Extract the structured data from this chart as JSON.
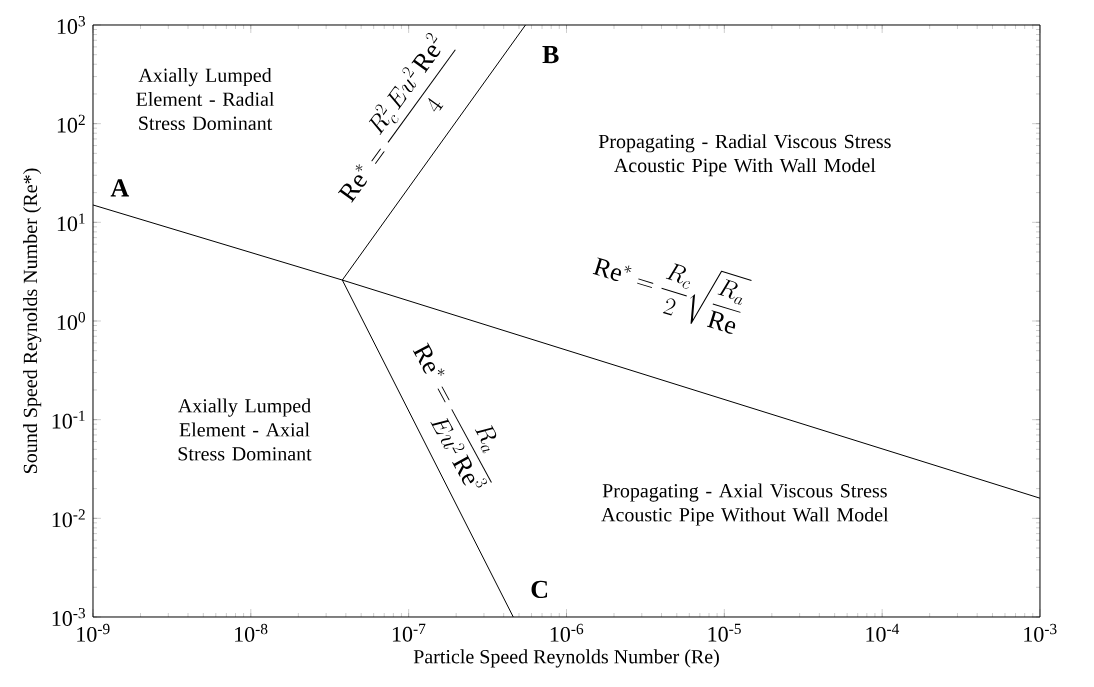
{
  "chart_data": {
    "type": "line",
    "xlabel": "Particle Speed Reynolds Number (Re)",
    "ylabel": "Sound Speed Reynolds Number (Re*)",
    "log": "xy",
    "grid": false,
    "marker": "none",
    "line_style": "solid",
    "xlim": [
      1e-09,
      0.001
    ],
    "ylim": [
      0.001,
      1000.0
    ],
    "xticks": [
      {
        "value": 1e-09,
        "label": "10$^{-9}$"
      },
      {
        "value": 1e-08,
        "label": "10$^{-8}$"
      },
      {
        "value": 1e-07,
        "label": "10$^{-7}$"
      },
      {
        "value": 1e-06,
        "label": "10$^{-6}$"
      },
      {
        "value": 1e-05,
        "label": "10$^{-5}$"
      },
      {
        "value": 0.0001,
        "label": "10$^{-4}$"
      },
      {
        "value": 0.001,
        "label": "10$^{-3}$"
      }
    ],
    "yticks": [
      {
        "value": 0.001,
        "label": "10$^{-3}$"
      },
      {
        "value": 0.01,
        "label": "10$^{-2}$"
      },
      {
        "value": 0.1,
        "label": "10$^{-1}$"
      },
      {
        "value": 1,
        "label": "10$^{0}$"
      },
      {
        "value": 10,
        "label": "10$^{1}$"
      },
      {
        "value": 100,
        "label": "10$^{2}$"
      },
      {
        "value": 1000,
        "label": "10$^{3}$"
      }
    ],
    "series": [
      {
        "color": "#000000",
        "x": [
          1e-09,
          3.8e-08,
          0.001
        ],
        "values": [
          15,
          2.6,
          0.016
        ]
      },
      {
        "color": "#000000",
        "x": [
          3.8e-08,
          5.5e-07
        ],
        "values": [
          2.6,
          1000
        ]
      },
      {
        "color": "#000000",
        "x": [
          3.8e-08,
          4.6e-07
        ],
        "values": [
          2.6,
          0.001
        ]
      }
    ],
    "annotations": [
      "Axially Lumped Element - Radial Stress Dominant",
      "Propagating - Radial Viscous Stress Acoustic Pipe With Wall Model",
      "Axially Lumped Element - Axial Stress Dominant",
      "Propagating - Axial Viscous Stress Acoustic Pipe Without Wall Model",
      "\\mathrm{Re}^*=\\frac{R_c^2\\,Eu^2\\,\\mathrm{Re}^2}{4}",
      "\\mathrm{Re}^*=\\frac{R_c}{2}\\sqrt{\\frac{R_a}{\\mathrm{Re}}}",
      "\\mathrm{Re}^*=\\frac{R_a}{Eu^2\\,\\mathrm{Re}^3}",
      "A",
      "B",
      "C"
    ]
  }
}
